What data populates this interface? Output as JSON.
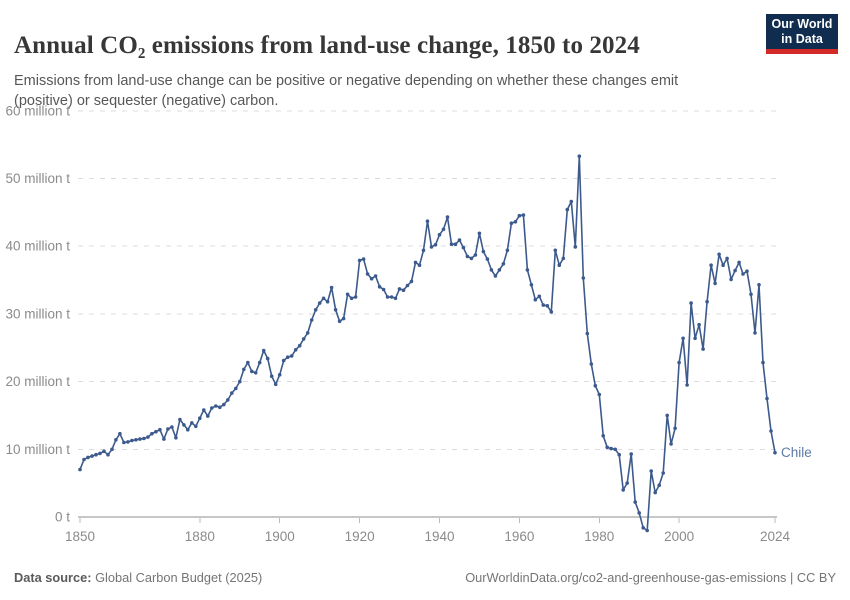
{
  "header": {
    "title": "Annual CO₂ emissions from land-use change, 1850 to 2024",
    "subtitle": "Emissions from land-use change can be positive or negative depending on whether these changes emit (positive) or sequester (negative) carbon."
  },
  "logo": {
    "line1": "Our World",
    "line2": "in Data"
  },
  "chart_data": {
    "type": "line",
    "title": "Annual CO₂ emissions from land-use change, 1850 to 2024",
    "entity": "Chile",
    "unit": "million t",
    "grid": true,
    "x": {
      "start": 1850,
      "end": 2024,
      "ticks": [
        1850,
        1880,
        1900,
        1920,
        1940,
        1960,
        1980,
        2000,
        2024
      ]
    },
    "y": {
      "ticks": [
        0,
        10,
        20,
        30,
        40,
        50,
        60
      ],
      "tick_labels": [
        "0 t",
        "10 million t",
        "20 million t",
        "30 million t",
        "40 million t",
        "50 million t",
        "60 million t"
      ],
      "ylim": [
        -3,
        60
      ]
    },
    "series": [
      {
        "name": "Chile",
        "color": "#3d5a8c",
        "values": [
          7.0,
          8.5,
          8.8,
          9.0,
          9.2,
          9.4,
          9.7,
          9.2,
          10.0,
          11.4,
          12.3,
          11.0,
          11.1,
          11.3,
          11.4,
          11.5,
          11.6,
          11.8,
          12.3,
          12.6,
          12.9,
          11.5,
          13.0,
          13.3,
          11.7,
          14.4,
          13.6,
          12.9,
          13.9,
          13.4,
          14.6,
          15.8,
          14.9,
          16.1,
          16.4,
          16.2,
          16.6,
          17.3,
          18.3,
          19.0,
          20.0,
          21.8,
          22.8,
          21.5,
          21.3,
          22.8,
          24.6,
          23.4,
          20.8,
          19.6,
          21.0,
          23.1,
          23.6,
          23.8,
          24.7,
          25.3,
          26.3,
          27.2,
          29.1,
          30.6,
          31.6,
          32.3,
          31.8,
          33.9,
          30.6,
          28.9,
          29.3,
          32.9,
          32.3,
          32.5,
          37.9,
          38.1,
          35.9,
          35.2,
          35.6,
          34.0,
          33.6,
          32.5,
          32.5,
          32.3,
          33.7,
          33.5,
          34.2,
          34.8,
          37.6,
          37.2,
          39.4,
          43.7,
          39.9,
          40.2,
          41.7,
          42.5,
          44.3,
          40.3,
          40.3,
          40.9,
          39.8,
          38.5,
          38.2,
          38.7,
          41.9,
          39.2,
          38.1,
          36.5,
          35.6,
          36.5,
          37.4,
          39.4,
          43.4,
          43.6,
          44.5,
          44.6,
          36.5,
          34.3,
          32.1,
          32.6,
          31.3,
          31.2,
          30.3,
          39.4,
          37.2,
          38.2,
          45.4,
          46.6,
          39.9,
          53.3,
          35.3,
          27.1,
          22.6,
          19.4,
          18.1,
          12.0,
          10.3,
          10.1,
          10.0,
          9.2,
          4.0,
          5.0,
          9.3,
          2.2,
          0.6,
          -1.6,
          -2.0,
          6.8,
          3.6,
          4.7,
          6.5,
          15.0,
          10.8,
          13.1,
          22.8,
          26.4,
          19.5,
          31.6,
          26.4,
          28.4,
          24.8,
          31.8,
          37.2,
          34.5,
          38.8,
          37.2,
          38.2,
          35.1,
          36.4,
          37.6,
          35.9,
          36.3,
          32.9,
          27.2,
          34.3,
          22.8,
          17.5,
          12.7,
          9.5
        ]
      }
    ],
    "colors": {
      "grid": "#dcdcdc",
      "axis": "#8f8f8f",
      "tick_mark": "#bbbbbb",
      "tick_label": "#8b8b8d",
      "entity_label": "#5b7ba6"
    }
  },
  "footer": {
    "source_label": "Data source:",
    "source_text": " Global Carbon Budget (2025)",
    "credit": "OurWorldinData.org/co2-and-greenhouse-gas-emissions | CC BY"
  }
}
